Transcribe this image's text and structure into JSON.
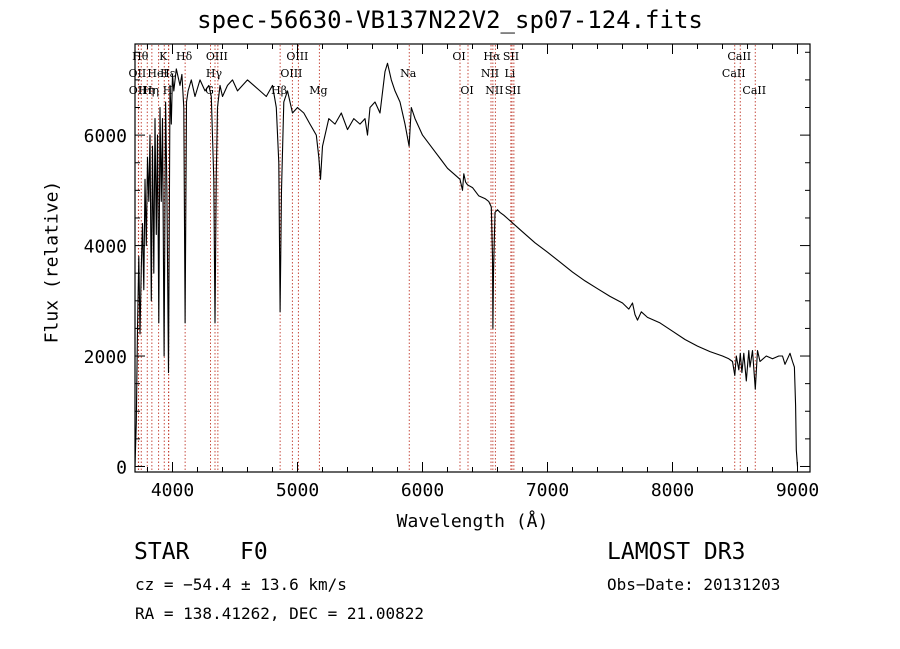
{
  "chart_data": {
    "type": "line",
    "title": "spec-56630-VB137N22V2_sp07-124.fits",
    "xlabel": "Wavelength (Å)",
    "ylabel": "Flux (relative)",
    "xlim": [
      3700,
      9100
    ],
    "ylim": [
      -100,
      7650
    ],
    "xticks": [
      4000,
      5000,
      6000,
      7000,
      8000,
      9000
    ],
    "xtick_labels": [
      "4000",
      "5000",
      "6000",
      "7000",
      "8000",
      "9000"
    ],
    "yticks": [
      0,
      2000,
      4000,
      6000
    ],
    "ytick_labels": [
      "0",
      "2000",
      "4000",
      "6000"
    ],
    "spectrum": {
      "x": [
        3700,
        3710,
        3720,
        3730,
        3740,
        3750,
        3760,
        3770,
        3780,
        3790,
        3800,
        3810,
        3820,
        3830,
        3840,
        3850,
        3860,
        3870,
        3880,
        3890,
        3900,
        3910,
        3920,
        3933,
        3945,
        3955,
        3968,
        3980,
        3990,
        4000,
        4010,
        4030,
        4060,
        4075,
        4090,
        4101,
        4112,
        4125,
        4150,
        4180,
        4220,
        4260,
        4290,
        4310,
        4330,
        4340,
        4350,
        4360,
        4380,
        4400,
        4440,
        4480,
        4520,
        4560,
        4600,
        4650,
        4700,
        4750,
        4800,
        4830,
        4850,
        4861,
        4872,
        4890,
        4920,
        4960,
        5000,
        5050,
        5100,
        5150,
        5170,
        5184,
        5200,
        5250,
        5300,
        5350,
        5400,
        5450,
        5500,
        5540,
        5560,
        5580,
        5620,
        5660,
        5700,
        5720,
        5750,
        5780,
        5820,
        5860,
        5893,
        5910,
        5940,
        6000,
        6050,
        6100,
        6150,
        6200,
        6250,
        6300,
        6320,
        6330,
        6345,
        6360,
        6400,
        6450,
        6500,
        6530,
        6550,
        6560,
        6563,
        6568,
        6580,
        6600,
        6620,
        6650,
        6700,
        6800,
        6900,
        7000,
        7100,
        7200,
        7300,
        7400,
        7500,
        7600,
        7650,
        7680,
        7700,
        7720,
        7750,
        7800,
        7900,
        8000,
        8100,
        8200,
        8300,
        8400,
        8450,
        8480,
        8498,
        8510,
        8530,
        8542,
        8555,
        8570,
        8590,
        8610,
        8620,
        8640,
        8662,
        8680,
        8700,
        8750,
        8800,
        8850,
        8880,
        8900,
        8940,
        8960,
        8975,
        8985,
        8990,
        9000
      ],
      "y": [
        0,
        800,
        2500,
        3800,
        2400,
        3600,
        4400,
        3200,
        5200,
        4000,
        5600,
        4800,
        6000,
        3000,
        5800,
        3500,
        6300,
        4200,
        6000,
        2600,
        6500,
        4800,
        6300,
        2000,
        6600,
        5000,
        1700,
        6900,
        6200,
        7100,
        6800,
        7200,
        6900,
        7100,
        6500,
        2600,
        6600,
        6800,
        7000,
        6700,
        7000,
        6800,
        6900,
        6700,
        5200,
        2600,
        5300,
        6500,
        6900,
        6700,
        6900,
        7000,
        6800,
        6900,
        7000,
        6900,
        6800,
        6700,
        6900,
        6500,
        5500,
        2800,
        5000,
        6600,
        6800,
        6400,
        6500,
        6400,
        6200,
        6000,
        5600,
        5200,
        5800,
        6300,
        6200,
        6400,
        6100,
        6300,
        6200,
        6300,
        6000,
        6500,
        6600,
        6400,
        7150,
        7300,
        7000,
        6800,
        6600,
        6200,
        5800,
        6500,
        6300,
        6000,
        5850,
        5700,
        5550,
        5400,
        5300,
        5200,
        5000,
        5300,
        5150,
        5100,
        5050,
        4900,
        4850,
        4800,
        4700,
        3800,
        2500,
        3500,
        4600,
        4650,
        4600,
        4550,
        4450,
        4250,
        4050,
        3880,
        3700,
        3520,
        3360,
        3220,
        3080,
        2960,
        2850,
        2960,
        2750,
        2650,
        2800,
        2700,
        2600,
        2450,
        2300,
        2180,
        2080,
        2000,
        1950,
        1900,
        1650,
        2000,
        1750,
        2050,
        1700,
        2050,
        1550,
        2100,
        1800,
        2100,
        1400,
        2100,
        1900,
        2000,
        1950,
        2000,
        2000,
        1850,
        2050,
        1900,
        1800,
        1100,
        300,
        0
      ]
    },
    "lines": [
      {
        "wave": 3750,
        "label": "Hθ",
        "row": 0
      },
      {
        "wave": 3727,
        "label": "OII",
        "row": 1
      },
      {
        "wave": 3729,
        "label": "OII",
        "row": 2
      },
      {
        "wave": 3798,
        "label": "Hη",
        "row": 2
      },
      {
        "wave": 3835,
        "label": "Hη",
        "row": 2
      },
      {
        "wave": 3889,
        "label": "HeI",
        "row": 1
      },
      {
        "wave": 3934,
        "label": "K",
        "row": 0
      },
      {
        "wave": 3968,
        "label": "H",
        "row": 2
      },
      {
        "wave": 3970,
        "label": "Hε",
        "row": 1
      },
      {
        "wave": 4101,
        "label": "Hδ",
        "row": 0
      },
      {
        "wave": 4304,
        "label": "G",
        "row": 2
      },
      {
        "wave": 4340,
        "label": "Hγ",
        "row": 1
      },
      {
        "wave": 4363,
        "label": "OIII",
        "row": 0
      },
      {
        "wave": 4861,
        "label": "Hβ",
        "row": 2
      },
      {
        "wave": 4959,
        "label": "OIII",
        "row": 1
      },
      {
        "wave": 5007,
        "label": "OIII",
        "row": 0
      },
      {
        "wave": 5175,
        "label": "Mg",
        "row": 2
      },
      {
        "wave": 5894,
        "label": "Na",
        "row": 1
      },
      {
        "wave": 6300,
        "label": "OI",
        "row": 0
      },
      {
        "wave": 6364,
        "label": "OI",
        "row": 2
      },
      {
        "wave": 6548,
        "label": "NII",
        "row": 1
      },
      {
        "wave": 6563,
        "label": "Hα",
        "row": 0
      },
      {
        "wave": 6583,
        "label": "NII",
        "row": 2
      },
      {
        "wave": 6707,
        "label": "Li",
        "row": 1
      },
      {
        "wave": 6716,
        "label": "SII",
        "row": 0
      },
      {
        "wave": 6731,
        "label": "SII",
        "row": 2
      },
      {
        "wave": 8498,
        "label": "CaII",
        "row": 1
      },
      {
        "wave": 8542,
        "label": "CaII",
        "row": 0
      },
      {
        "wave": 8662,
        "label": "CaII",
        "row": 2
      }
    ]
  },
  "info": {
    "class": "STAR",
    "subclass": "F0",
    "cz": "cz = −54.4 ± 13.6 km/s",
    "radec": "RA = 138.41262, DEC =  21.00822",
    "survey": "LAMOST DR3",
    "obs_date": "Obs−Date: 20131203"
  },
  "colors": {
    "spectrum": "#000000",
    "line_marker": "#c0392b",
    "axis": "#000000"
  }
}
